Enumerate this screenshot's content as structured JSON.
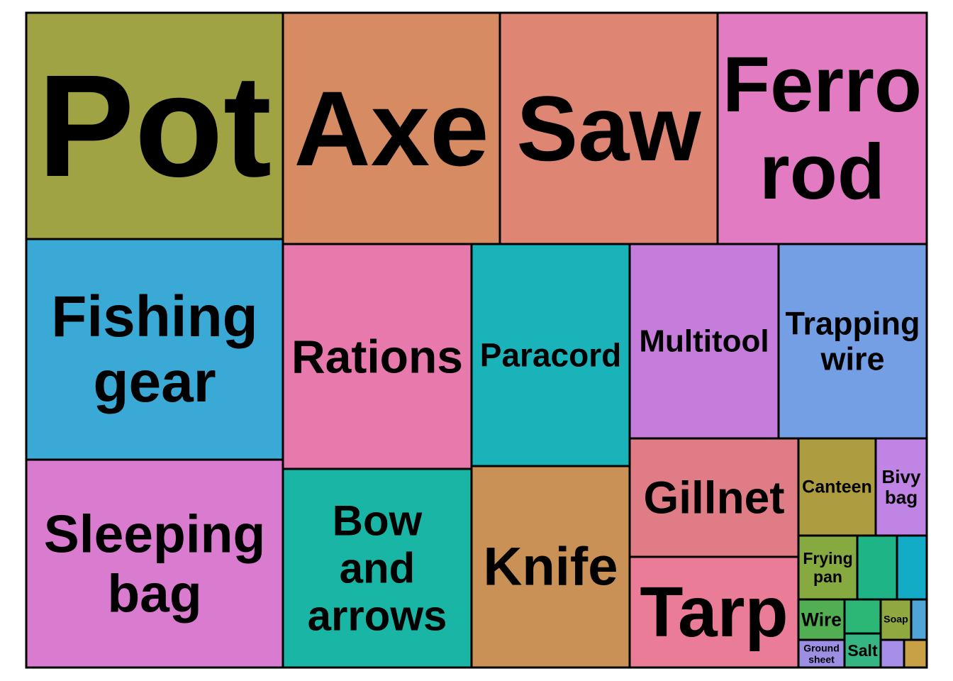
{
  "chart_data": {
    "type": "treemap",
    "items": [
      {
        "label": "Pot",
        "color": "#A0A344"
      },
      {
        "label": "Axe",
        "color": "#D68B63"
      },
      {
        "label": "Saw",
        "color": "#DF8574"
      },
      {
        "label": "Ferro rod",
        "color": "#E27BC2"
      },
      {
        "label": "Fishing gear",
        "color": "#3BA9D6"
      },
      {
        "label": "Rations",
        "color": "#E879AD"
      },
      {
        "label": "Paracord",
        "color": "#1AB3BA"
      },
      {
        "label": "Multitool",
        "color": "#C67CDA"
      },
      {
        "label": "Trapping wire",
        "color": "#759FE5"
      },
      {
        "label": "Sleeping bag",
        "color": "#D97BCE"
      },
      {
        "label": "Bow and arrows",
        "color": "#1AB6A5"
      },
      {
        "label": "Knife",
        "color": "#C99155"
      },
      {
        "label": "Gillnet",
        "color": "#E07C85"
      },
      {
        "label": "Canteen",
        "color": "#AE9D40"
      },
      {
        "label": "Bivy bag",
        "color": "#C084E4"
      },
      {
        "label": "Tarp",
        "color": "#EA7C97"
      },
      {
        "label": "Frying pan",
        "color": "#86AA3F"
      },
      {
        "label": "",
        "color": "#1FB486"
      },
      {
        "label": "",
        "color": "#12ACC6"
      },
      {
        "label": "Wire",
        "color": "#52AE53"
      },
      {
        "label": "",
        "color": "#2CB777"
      },
      {
        "label": "Soap",
        "color": "#8FA83F"
      },
      {
        "label": "",
        "color": "#4EA5D6"
      },
      {
        "label": "Ground sheet",
        "color": "#9B8EE3"
      },
      {
        "label": "Salt",
        "color": "#34B581"
      },
      {
        "label": "",
        "color": "#A68FE6"
      },
      {
        "label": "",
        "color": "#C8A046"
      }
    ]
  }
}
